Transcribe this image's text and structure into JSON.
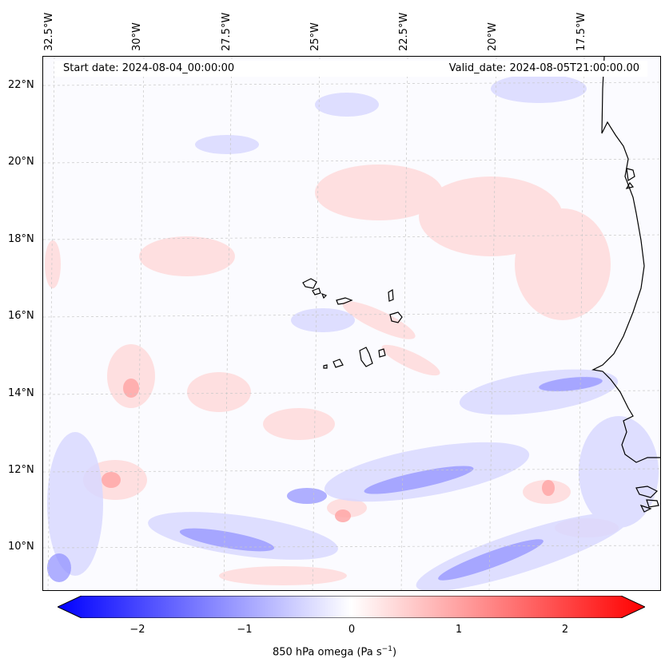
{
  "header": {
    "start_date": "Start date: 2024-08-04_00:00:00",
    "valid_date": "Valid_date: 2024-08-05T21:00:00.00"
  },
  "axes": {
    "lon_labels": [
      "32.5°W",
      "30°W",
      "27.5°W",
      "25°W",
      "22.5°W",
      "20°W",
      "17.5°W"
    ],
    "lat_labels": [
      "22°N",
      "20°N",
      "18°N",
      "16°N",
      "14°N",
      "12°N",
      "10°N"
    ]
  },
  "colorbar": {
    "ticks": [
      "−2",
      "−1",
      "0",
      "1",
      "2"
    ],
    "label": "850 hPa omega (Pa s",
    "label_sup": "−1",
    "label_end": ")",
    "range": [
      -2.75,
      2.75
    ],
    "colormap": "bwr",
    "colors": {
      "neg": "#0000ff",
      "zero": "#ffffff",
      "pos": "#ff0000"
    }
  },
  "map": {
    "region": "Cape Verde / West African coast",
    "coastline_color": "#000000",
    "gridline_color": "#c8c8c8"
  }
}
